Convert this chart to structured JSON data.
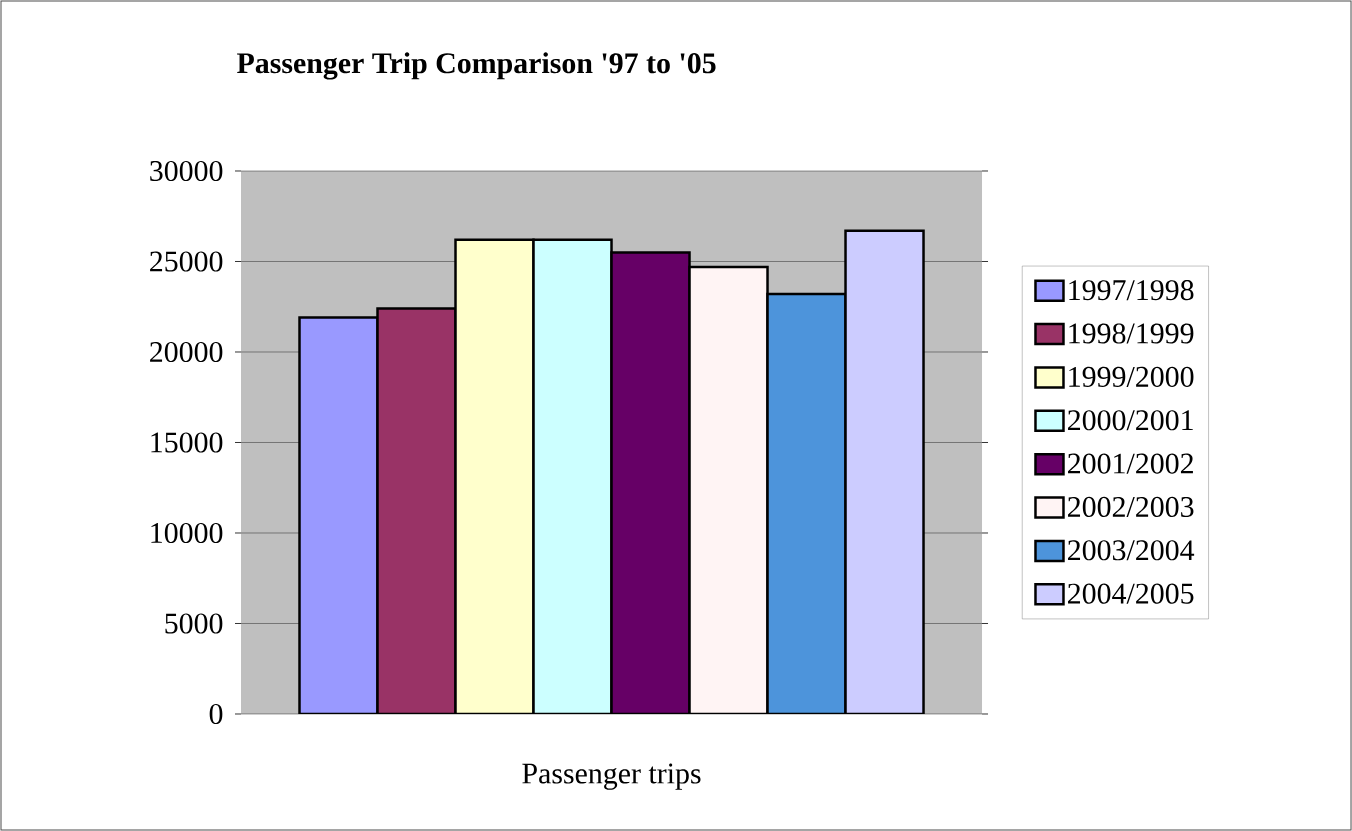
{
  "chart_data": {
    "type": "bar",
    "title": "Passenger Trip Comparison '97 to '05",
    "categories": [
      "Passenger trips"
    ],
    "series": [
      {
        "name": "1997/1998",
        "color": "#9999ff",
        "values": [
          21900
        ]
      },
      {
        "name": "1998/1999",
        "color": "#993366",
        "values": [
          22400
        ]
      },
      {
        "name": "1999/2000",
        "color": "#ffffcc",
        "values": [
          26200
        ]
      },
      {
        "name": "2000/2001",
        "color": "#ccffff",
        "values": [
          26200
        ]
      },
      {
        "name": "2001/2002",
        "color": "#660066",
        "values": [
          25500
        ]
      },
      {
        "name": "2002/2003",
        "color": "#fff4f4",
        "values": [
          24700
        ]
      },
      {
        "name": "2003/2004",
        "color": "#4d94db",
        "values": [
          23200
        ]
      },
      {
        "name": "2004/2005",
        "color": "#ccccff",
        "values": [
          26700
        ]
      }
    ],
    "ylim": [
      0,
      30000
    ],
    "yticks": [
      0,
      5000,
      10000,
      15000,
      20000,
      25000,
      30000
    ],
    "grid": "y",
    "legend": "right"
  }
}
